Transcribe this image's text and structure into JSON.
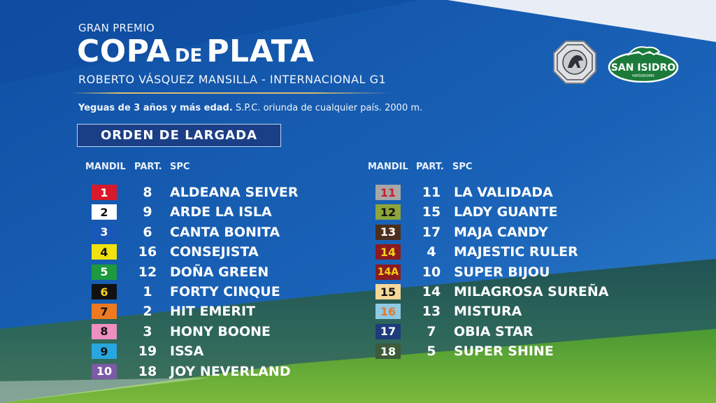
{
  "header": {
    "pre_title": "GRAN PREMIO",
    "title_a": "COPA",
    "title_de": "DE",
    "title_b": "PLATA",
    "subtitle": "ROBERTO VÁSQUEZ MANSILLA - INTERNACIONAL G1",
    "conditions_bold": "Yeguas de 3 años y más edad.",
    "conditions_rest": " S.P.C. oriunda de cualquier país. 2000 m.",
    "order_label": "ORDEN DE LARGADA"
  },
  "columns": {
    "mandil": "MANDIL",
    "part": "PART.",
    "spc": "SPC"
  },
  "logo": {
    "san_isidro": "SAN ISIDRO",
    "hipodromo": "HIPÓDROMO"
  },
  "colors": {
    "sky_blue": "#1357a8",
    "grass_green": "#3e8a2e",
    "gold_line": "#d9bd74",
    "label_box": "#1b3f86"
  },
  "entries_left": [
    {
      "mandil": "1",
      "part": "8",
      "horse": "ALDEANA SEIVER",
      "bg": "#d61a2c",
      "fg": "#ffffff"
    },
    {
      "mandil": "2",
      "part": "9",
      "horse": "ARDE LA ISLA",
      "bg": "#ffffff",
      "fg": "#111111"
    },
    {
      "mandil": "3",
      "part": "6",
      "horse": "CANTA BONITA",
      "bg": "#1957b8",
      "fg": "#ffffff"
    },
    {
      "mandil": "4",
      "part": "16",
      "horse": "CONSEJISTA",
      "bg": "#f1e20f",
      "fg": "#111111"
    },
    {
      "mandil": "5",
      "part": "12",
      "horse": "DOÑA GREEN",
      "bg": "#1d9a3e",
      "fg": "#ffffff"
    },
    {
      "mandil": "6",
      "part": "1",
      "horse": "FORTY CINQUE",
      "bg": "#111111",
      "fg": "#f5d318"
    },
    {
      "mandil": "7",
      "part": "2",
      "horse": "HIT EMERIT",
      "bg": "#ee7a1f",
      "fg": "#111111"
    },
    {
      "mandil": "8",
      "part": "3",
      "horse": "HONY BOONE",
      "bg": "#ee8fc0",
      "fg": "#111111"
    },
    {
      "mandil": "9",
      "part": "19",
      "horse": "ISSA",
      "bg": "#27a6e0",
      "fg": "#111111"
    },
    {
      "mandil": "10",
      "part": "18",
      "horse": "JOY NEVERLAND",
      "bg": "#7b5aa6",
      "fg": "#ffffff"
    }
  ],
  "entries_right": [
    {
      "mandil": "11",
      "part": "11",
      "horse": "LA VALIDADA",
      "bg": "#a7a7a7",
      "fg": "#c8202a"
    },
    {
      "mandil": "12",
      "part": "15",
      "horse": "LADY GUANTE",
      "bg": "#8ea53a",
      "fg": "#111111"
    },
    {
      "mandil": "13",
      "part": "17",
      "horse": "MAJA CANDY",
      "bg": "#4c2e1c",
      "fg": "#ffffff"
    },
    {
      "mandil": "14",
      "part": "4",
      "horse": "MAJESTIC RULER",
      "bg": "#8c1b1f",
      "fg": "#f5d318"
    },
    {
      "mandil": "14A",
      "part": "10",
      "horse": "SUPER BIJOU",
      "bg": "#8c1b1f",
      "fg": "#f5d318"
    },
    {
      "mandil": "15",
      "part": "14",
      "horse": "MILAGROSA SUREÑA",
      "bg": "#f6d79a",
      "fg": "#111111"
    },
    {
      "mandil": "16",
      "part": "13",
      "horse": "MISTURA",
      "bg": "#8fc9e6",
      "fg": "#e07a2a"
    },
    {
      "mandil": "17",
      "part": "7",
      "horse": "OBIA STAR",
      "bg": "#1e3b7c",
      "fg": "#ffffff"
    },
    {
      "mandil": "18",
      "part": "5",
      "horse": "SUPER SHINE",
      "bg": "#3d5a3a",
      "fg": "#ffffff"
    }
  ]
}
